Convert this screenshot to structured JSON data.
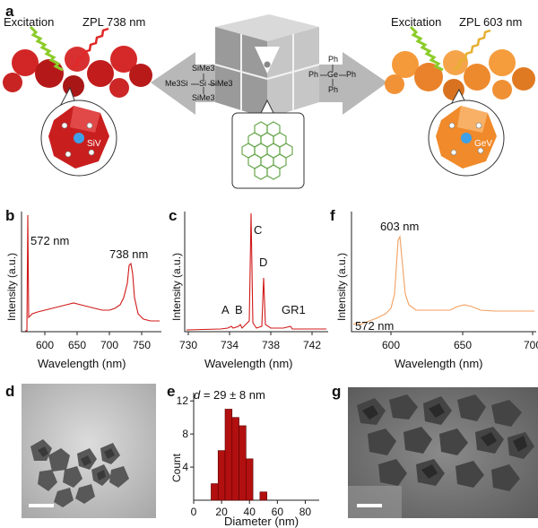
{
  "colors": {
    "siv_red": "#c91e1e",
    "gev_orange": "#f08a2a",
    "spectrum_red": "#d01818",
    "spectrum_orange": "#f4a060",
    "bar_red": "#b21010",
    "arrow_gray": "#b7b7b7",
    "spring_green": "#8ccc2a",
    "spring_red": "#e02828",
    "spring_gold": "#e6b030",
    "molecule_green": "#6aa84f"
  },
  "panel_a": {
    "letter": "a",
    "left": {
      "excitation": "Excitation",
      "zpl": "ZPL 738 nm",
      "defect": "SiV"
    },
    "right": {
      "excitation": "Excitation",
      "zpl": "ZPL 603 nm",
      "defect": "GeV"
    },
    "si_precursor": {
      "top": "SiMe3",
      "center": "Si",
      "left": "Me3Si",
      "right": "SiMe3",
      "bottom": "SiMe3"
    },
    "ge_precursor": {
      "center": "Ge",
      "top": "Ph",
      "left": "Ph",
      "right": "Ph",
      "bottom": "Ph"
    }
  },
  "panel_b": {
    "letter": "b",
    "peak1": "572 nm",
    "peak2": "738 nm",
    "ylabel": "Intensity (a.u.)",
    "xlabel": "Wavelength (nm)",
    "ticks": [
      "600",
      "650",
      "700",
      "750"
    ]
  },
  "panel_c": {
    "letter": "c",
    "peaks": [
      "A",
      "B",
      "C",
      "D",
      "GR1"
    ],
    "ylabel": "Intensity (a.u.)",
    "xlabel": "Wavelength (nm)",
    "ticks": [
      "730",
      "734",
      "738",
      "742"
    ]
  },
  "panel_f": {
    "letter": "f",
    "peak1": "603 nm",
    "peak2": "572 nm",
    "ylabel": "Intensity (a.u.)",
    "xlabel": "Wavelength (nm)",
    "ticks": [
      "600",
      "650",
      "700"
    ]
  },
  "panel_d": {
    "letter": "d"
  },
  "panel_g": {
    "letter": "g"
  },
  "panel_e": {
    "letter": "e",
    "annotation_var": "d",
    "annotation": " = 29 ± 8 nm",
    "ylabel": "Count",
    "xlabel": "Diameter (nm)"
  },
  "chart_data": {
    "type": "bar",
    "xlabel": "Diameter (nm)",
    "ylabel": "Count",
    "x": [
      15,
      20,
      25,
      30,
      35,
      40,
      50
    ],
    "values": [
      2,
      6,
      11,
      10,
      9,
      5,
      1
    ],
    "xlim": [
      0,
      90
    ],
    "ylim": [
      0,
      13
    ],
    "xticks": [
      "0",
      "20",
      "40",
      "60",
      "80"
    ],
    "yticks": [
      "4",
      "8",
      "12"
    ]
  }
}
